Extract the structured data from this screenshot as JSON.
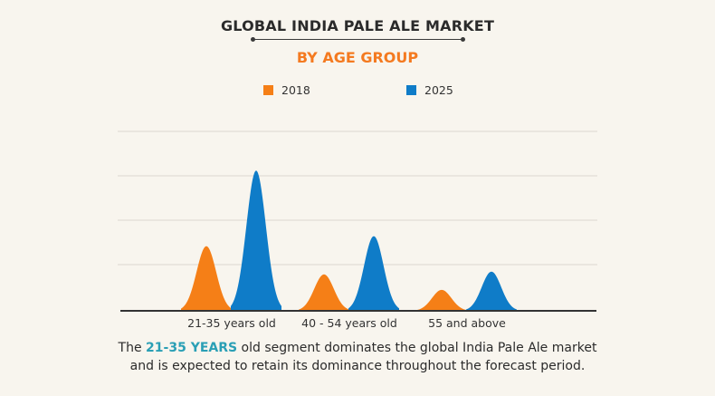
{
  "header": {
    "title": "GLOBAL INDIA PALE ALE MARKET",
    "subtitle": "BY AGE GROUP"
  },
  "caption": {
    "prefix": "The ",
    "highlight": "21-35 YEARS",
    "line1_rest": " old segment dominates the global India Pale Ale market",
    "line2": "and is expected to retain its dominance throughout the forecast period."
  },
  "colors": {
    "series_2018": "#f57f17",
    "series_2025": "#0f7cc8",
    "title": "#2b2b2b",
    "subtitle": "#f47a20",
    "highlight": "#2a9fb5",
    "background": "#f8f5ee"
  },
  "chart_data": {
    "type": "area",
    "title": "GLOBAL INDIA PALE ALE MARKET",
    "subtitle": "BY AGE GROUP",
    "xlabel": "",
    "ylabel": "",
    "categories": [
      "21-35 years old",
      "40 - 54 years old",
      "55 and above"
    ],
    "series": [
      {
        "name": "2018",
        "color": "#f57f17",
        "values": [
          1.42,
          0.8,
          0.46
        ]
      },
      {
        "name": "2025",
        "color": "#0f7cc8",
        "values": [
          3.08,
          1.64,
          0.86
        ]
      }
    ],
    "ylim": [
      0,
      4
    ],
    "y_gridlines": [
      1,
      2,
      3,
      4
    ],
    "y_tick_labels_shown": false,
    "grid": true,
    "legend_position": "top",
    "note": "Values are relative peak heights in gridline units; no axis values are printed."
  }
}
